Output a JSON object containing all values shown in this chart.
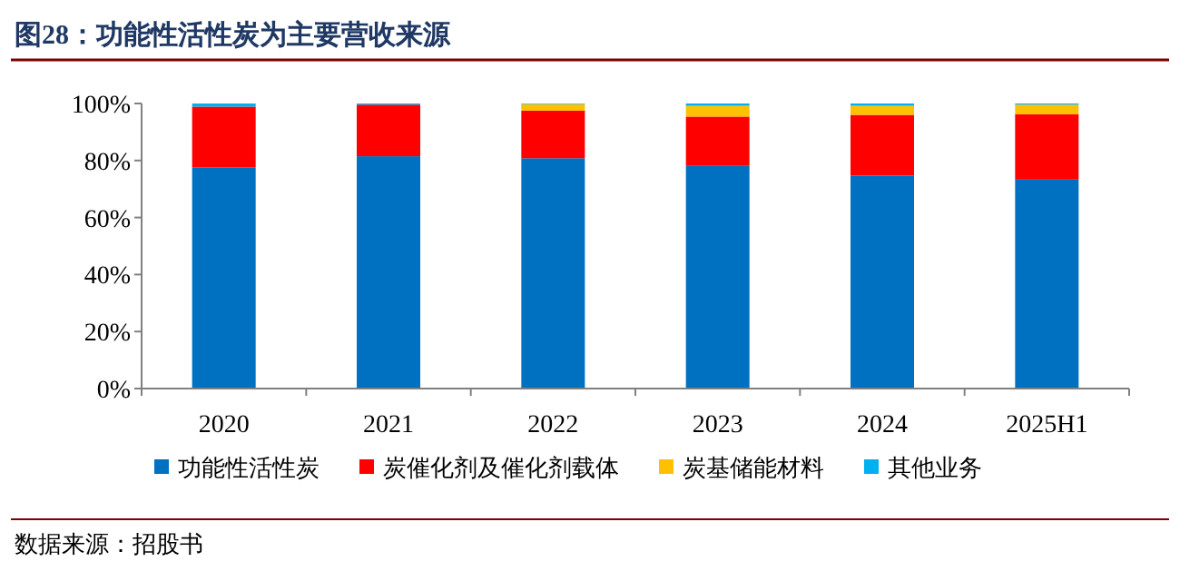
{
  "chart_data": {
    "type": "bar",
    "stacked": true,
    "title": "图28：功能性活性炭为主要营收来源",
    "categories": [
      "2020",
      "2021",
      "2022",
      "2023",
      "2024",
      "2025H1"
    ],
    "series": [
      {
        "name": "功能性活性炭",
        "color": "#0070c0",
        "values": [
          77.5,
          81.5,
          80.8,
          78.1,
          74.7,
          73.3
        ]
      },
      {
        "name": "炭催化剂及催化剂载体",
        "color": "#ff0000",
        "values": [
          21.4,
          18.1,
          16.7,
          17.3,
          21.3,
          22.9
        ]
      },
      {
        "name": "炭基储能材料",
        "color": "#ffc000",
        "values": [
          0,
          0,
          2.3,
          3.8,
          3.2,
          3.4
        ]
      },
      {
        "name": "其他业务",
        "color": "#00b0f0",
        "values": [
          1.1,
          0.4,
          0.2,
          0.8,
          0.8,
          0.4
        ]
      }
    ],
    "ylim": [
      0,
      100
    ],
    "yticks": [
      {
        "value": 0,
        "label": "0%"
      },
      {
        "value": 20,
        "label": "20%"
      },
      {
        "value": 40,
        "label": "40%"
      },
      {
        "value": 60,
        "label": "60%"
      },
      {
        "value": 80,
        "label": "80%"
      },
      {
        "value": 100,
        "label": "100%"
      }
    ],
    "grid": false,
    "legend": "bottom",
    "annotations": [
      "数据来源：招股书"
    ]
  }
}
